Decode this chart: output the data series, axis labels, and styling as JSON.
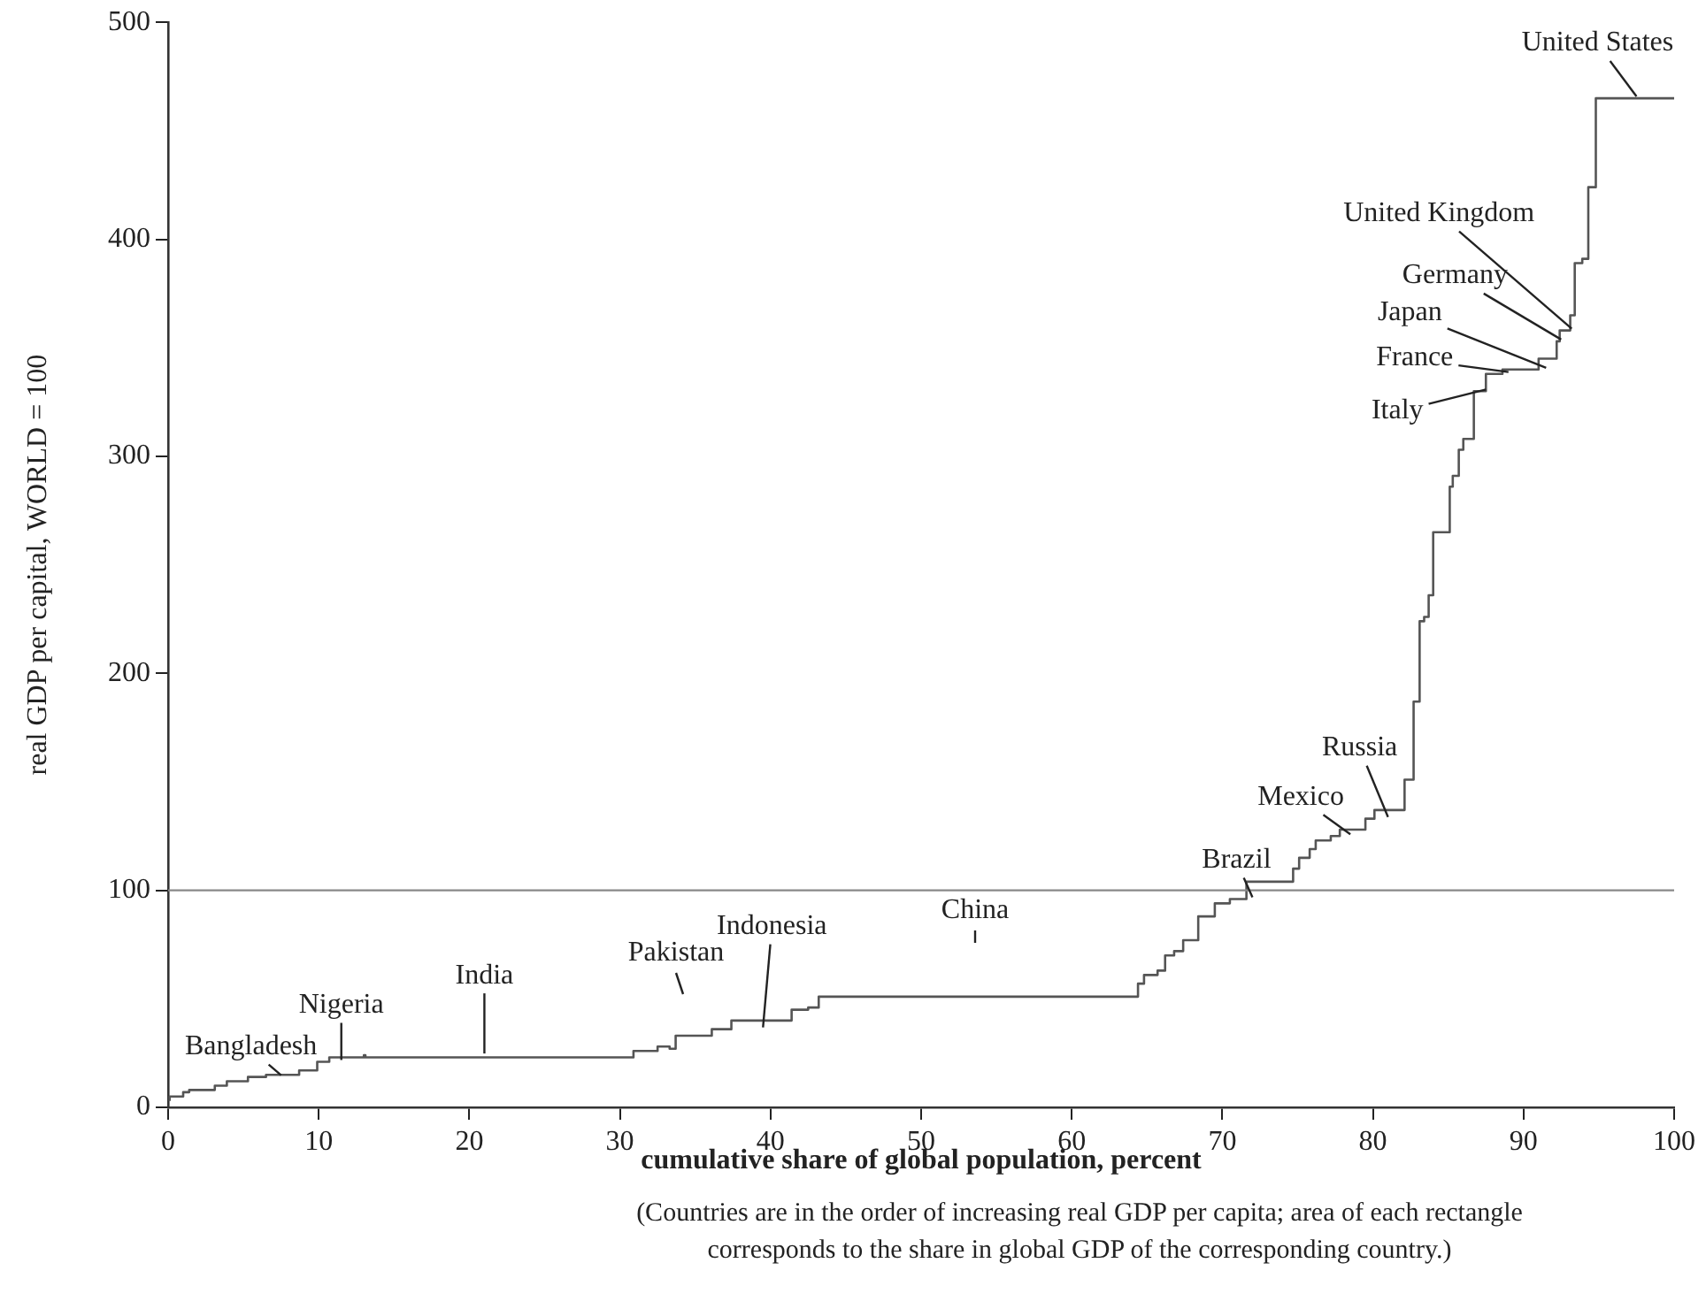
{
  "chart_data": {
    "type": "step",
    "xlabel": "cumulative share of global population, percent",
    "ylabel": "real GDP per capital, WORLD = 100",
    "xlim": [
      0,
      100
    ],
    "xticks": [
      0,
      10,
      20,
      30,
      40,
      50,
      60,
      70,
      80,
      90,
      100
    ],
    "ylim": [
      0,
      500
    ],
    "yticks": [
      0,
      100,
      200,
      300,
      400,
      500
    ],
    "marker": "none",
    "legend": false,
    "series": [
      {
        "color": "#555555",
        "x": [
          0.1,
          1.0,
          1.4,
          3.1,
          3.9,
          5.3,
          6.5,
          8.7,
          9.9,
          10.7,
          13.0,
          13.1,
          30.9,
          32.5,
          33.3,
          33.7,
          36.1,
          37.4,
          41.4,
          42.5,
          43.2,
          64.4,
          64.8,
          65.7,
          66.2,
          66.8,
          67.4,
          68.4,
          69.5,
          70.5,
          71.6,
          74.7,
          75.1,
          75.8,
          76.2,
          77.2,
          77.8,
          79.5,
          80.1,
          82.1,
          82.7,
          83.1,
          83.4,
          83.7,
          84.0,
          85.1,
          85.3,
          85.7,
          86.0,
          86.7,
          87.5,
          88.6,
          91.0,
          92.2,
          92.4,
          93.1,
          93.4,
          93.9,
          94.3,
          94.8,
          95.2,
          100
        ],
        "values": [
          3,
          5,
          7,
          8,
          10,
          12,
          14,
          15,
          17,
          21,
          23,
          24,
          23,
          26,
          28,
          27,
          33,
          36,
          40,
          45,
          46,
          51,
          57,
          61,
          63,
          70,
          72,
          77,
          88,
          94,
          96,
          104,
          110,
          115,
          119,
          123,
          125,
          128,
          133,
          137,
          151,
          187,
          224,
          226,
          236,
          265,
          286,
          291,
          303,
          308,
          330,
          338,
          340,
          345,
          353,
          358,
          365,
          389,
          391,
          424,
          465,
          465
        ]
      }
    ],
    "ref_lines": [
      {
        "axis": "y",
        "value": 100,
        "color": "#888888"
      }
    ],
    "annotations": [
      {
        "text": "Bangladesh",
        "x": 7.5,
        "y": 14
      },
      {
        "text": "Nigeria",
        "x": 11.5,
        "y": 21
      },
      {
        "text": "India",
        "x": 21,
        "y": 24
      },
      "Pakistan",
      {
        "text": "Indonesia",
        "x": 39.5,
        "y": 36
      },
      "China",
      {
        "text": "Brazil",
        "x": 72,
        "y": 96
      },
      {
        "text": "Mexico",
        "x": 78.5,
        "y": 125
      },
      {
        "text": "Russia",
        "x": 81,
        "y": 133
      },
      {
        "text": "Italy",
        "x": 87.5,
        "y": 330
      },
      {
        "text": "France",
        "x": 89,
        "y": 338
      },
      {
        "text": "Japan",
        "x": 91.5,
        "y": 340
      },
      {
        "text": "Germany",
        "x": 92.5,
        "y": 353
      },
      {
        "text": "United Kingdom",
        "x": 93.2,
        "y": 358
      },
      {
        "text": "United States",
        "x": 97.5,
        "y": 465
      },
      "(Countries are in the order of increasing real GDP per capita; area of each rectangle corresponds to the share in global GDP of the corresponding country.)"
    ]
  }
}
